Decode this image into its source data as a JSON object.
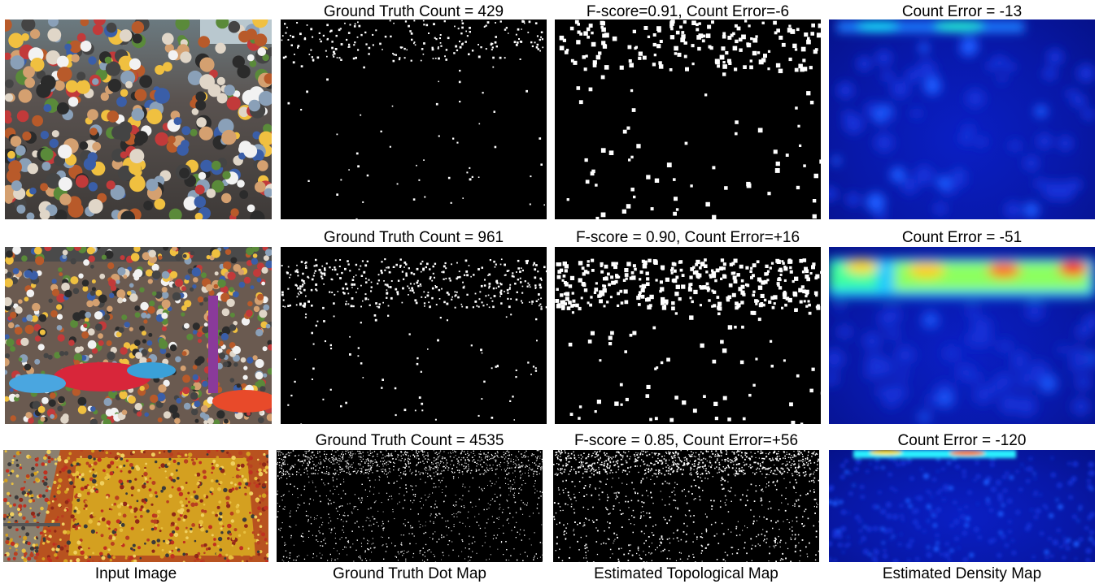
{
  "figure": {
    "rows": [
      {
        "gt_title": "Ground Truth Count = 429",
        "topo_title": "F-score=0.91, Count Error=-6",
        "density_title": "Count Error = -13"
      },
      {
        "gt_title": "Ground Truth Count = 961",
        "topo_title": "F-score = 0.90, Count Error=+16",
        "density_title": "Count Error = -51"
      },
      {
        "gt_title": "Ground Truth Count = 4535",
        "topo_title": "F-score = 0.85, Count Error=+56",
        "density_title": "Count Error = -120"
      }
    ],
    "column_labels": {
      "input": "Input Image",
      "gt": "Ground Truth Dot Map",
      "topo": "Estimated Topological Map",
      "density": "Estimated Density Map"
    }
  },
  "colors": {
    "map_background": "#000000",
    "dot": "#ffffff",
    "density_low": "#0818a8",
    "density_mid": "#00e5ff",
    "density_high": "#ff3000"
  }
}
